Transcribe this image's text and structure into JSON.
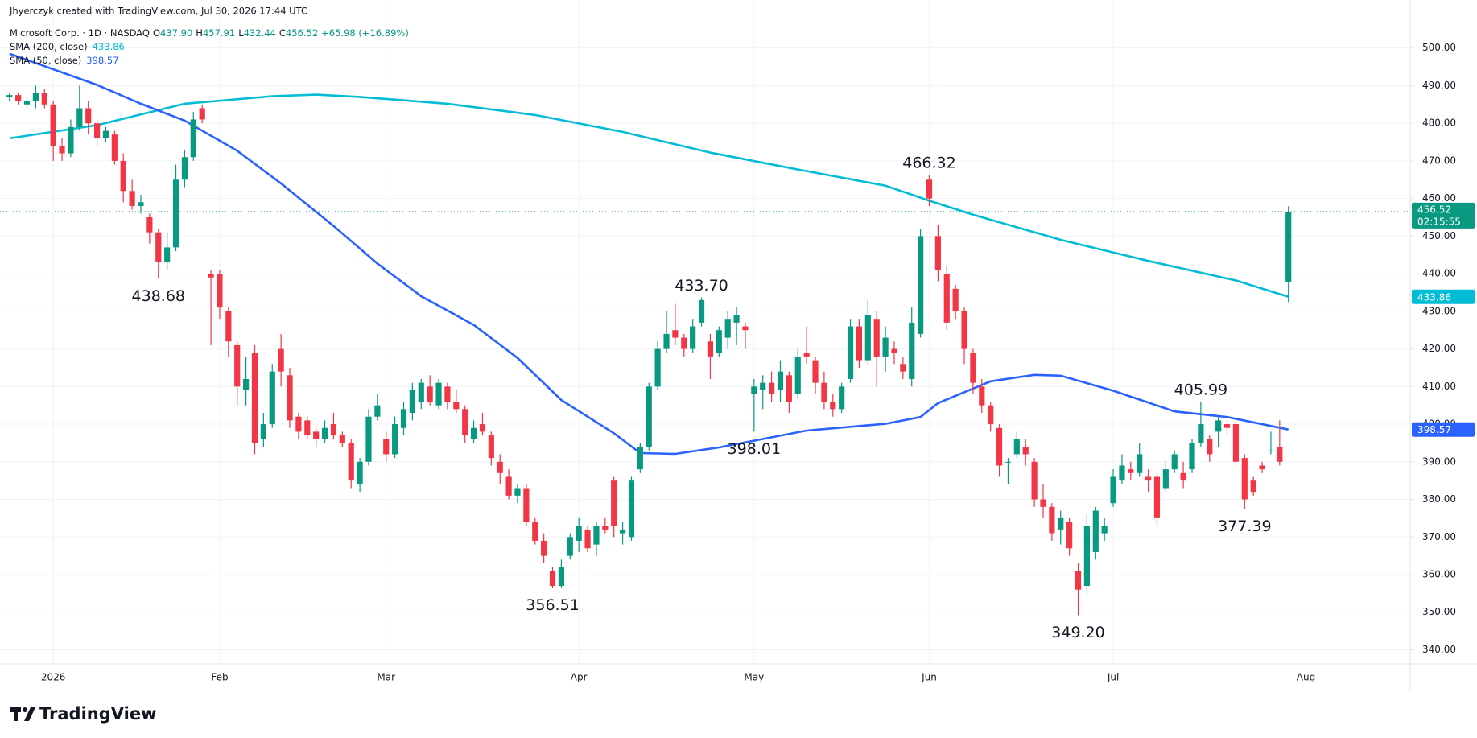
{
  "header": {
    "credit": "Jhyerczyk created with TradingView.com, Jul 30, 2026 17:44 UTC",
    "brand": "TradingView"
  },
  "chart_data": {
    "type": "candlestick",
    "legend": {
      "title": "Microsoft Corp. · 1D · NASDAQ",
      "fields": [
        [
          "O",
          "437.90"
        ],
        [
          "H",
          "457.91"
        ],
        [
          "L",
          "432.44"
        ],
        [
          "C",
          "456.52"
        ]
      ],
      "change": "+65.98 (+16.89%)"
    },
    "up_color": "#089981",
    "down_color": "#f23645",
    "grid": true,
    "xlim": [
      -1.08,
      159.9
    ],
    "ylim": [
      336.25,
      512.77
    ],
    "xticks": [
      {
        "value": 5,
        "label": "2026"
      },
      {
        "value": 24,
        "label": "Feb"
      },
      {
        "value": 43,
        "label": "Mar"
      },
      {
        "value": 65,
        "label": "Apr"
      },
      {
        "value": 85,
        "label": "May"
      },
      {
        "value": 105,
        "label": "Jun"
      },
      {
        "value": 126,
        "label": "Jul"
      },
      {
        "value": 148,
        "label": "Aug"
      }
    ],
    "yticks": [
      {
        "value": 340,
        "label": "340.00"
      },
      {
        "value": 350,
        "label": "350.00"
      },
      {
        "value": 360,
        "label": "360.00"
      },
      {
        "value": 370,
        "label": "370.00"
      },
      {
        "value": 380,
        "label": "380.00"
      },
      {
        "value": 390,
        "label": "390.00"
      },
      {
        "value": 400,
        "label": "400.00"
      },
      {
        "value": 410,
        "label": "410.00"
      },
      {
        "value": 420,
        "label": "420.00"
      },
      {
        "value": 430,
        "label": "430.00"
      },
      {
        "value": 440,
        "label": "440.00"
      },
      {
        "value": 450,
        "label": "450.00"
      },
      {
        "value": 460,
        "label": "460.00"
      },
      {
        "value": 470,
        "label": "470.00"
      },
      {
        "value": 480,
        "label": "480.00"
      },
      {
        "value": 490,
        "label": "490.00"
      },
      {
        "value": 500,
        "label": "500.00"
      }
    ],
    "ohlc": [
      [
        487,
        488,
        486,
        487.5
      ],
      [
        487.5,
        488,
        485,
        486
      ],
      [
        485,
        487,
        484,
        486
      ],
      [
        486,
        490,
        484,
        488
      ],
      [
        488,
        489,
        484,
        485
      ],
      [
        485,
        486,
        470,
        474
      ],
      [
        474,
        476,
        470,
        472
      ],
      [
        472,
        481,
        471,
        479
      ],
      [
        479,
        490,
        478,
        484
      ],
      [
        484,
        486,
        477,
        480
      ],
      [
        480,
        481,
        474,
        476
      ],
      [
        476,
        479,
        475,
        478
      ],
      [
        477,
        478,
        469,
        470
      ],
      [
        470,
        472,
        459,
        462
      ],
      [
        462,
        465,
        457,
        458
      ],
      [
        458,
        461,
        456,
        459
      ],
      [
        455,
        456,
        448,
        451
      ],
      [
        451,
        452,
        438.68,
        443
      ],
      [
        443,
        451,
        441,
        447
      ],
      [
        447,
        469,
        446,
        465
      ],
      [
        465,
        473,
        463,
        471
      ],
      [
        471,
        483,
        470,
        481
      ],
      [
        484,
        485,
        480,
        481
      ],
      [
        440,
        441,
        421,
        439
      ],
      [
        440,
        441,
        428,
        431
      ],
      [
        430,
        431,
        418,
        422
      ],
      [
        421,
        422,
        405,
        410
      ],
      [
        409,
        418,
        405,
        412
      ],
      [
        419,
        421,
        392,
        395
      ],
      [
        396,
        403,
        394,
        400
      ],
      [
        400,
        416,
        399,
        414
      ],
      [
        420,
        424,
        410,
        414
      ],
      [
        413,
        415,
        399,
        401
      ],
      [
        402,
        403,
        396,
        398
      ],
      [
        401,
        402,
        396,
        397
      ],
      [
        398,
        399,
        394,
        396
      ],
      [
        396,
        401,
        395,
        399
      ],
      [
        400,
        403,
        396,
        397
      ],
      [
        397,
        398,
        394,
        395
      ],
      [
        395,
        396,
        383,
        385
      ],
      [
        384,
        391,
        382,
        390
      ],
      [
        390,
        404,
        389,
        402
      ],
      [
        402,
        408,
        401,
        405
      ],
      [
        396,
        398,
        390,
        392
      ],
      [
        392,
        402,
        391,
        400
      ],
      [
        399,
        406,
        397,
        404
      ],
      [
        403,
        411,
        401,
        409
      ],
      [
        406,
        412,
        404,
        411
      ],
      [
        410,
        413,
        405,
        406
      ],
      [
        405,
        412,
        404,
        411
      ],
      [
        410,
        411,
        404,
        406
      ],
      [
        406,
        409,
        403,
        404
      ],
      [
        404,
        405,
        395,
        397
      ],
      [
        396,
        401,
        395,
        399
      ],
      [
        400,
        403,
        397,
        398
      ],
      [
        397,
        398,
        389,
        391
      ],
      [
        390,
        392,
        384,
        387
      ],
      [
        386,
        388,
        380,
        381
      ],
      [
        381,
        384,
        379,
        383
      ],
      [
        383,
        384,
        373,
        374
      ],
      [
        374,
        375,
        368,
        369
      ],
      [
        369,
        371,
        363,
        365
      ],
      [
        361,
        362,
        356.51,
        357
      ],
      [
        357,
        364,
        356.6,
        362
      ],
      [
        365,
        371,
        364,
        370
      ],
      [
        369,
        375,
        366,
        373
      ],
      [
        372,
        373,
        366,
        367
      ],
      [
        368,
        374,
        365,
        373
      ],
      [
        373,
        375,
        371,
        372
      ],
      [
        385,
        386,
        370,
        373
      ],
      [
        371,
        374,
        368,
        372
      ],
      [
        370,
        386,
        369,
        385
      ],
      [
        388,
        395,
        387,
        394
      ],
      [
        394,
        411,
        393,
        410
      ],
      [
        410,
        422,
        409,
        420
      ],
      [
        420,
        430,
        419,
        424
      ],
      [
        425,
        432,
        421,
        423
      ],
      [
        423,
        424,
        418,
        420
      ],
      [
        420,
        428,
        419,
        426
      ],
      [
        427,
        433.7,
        426,
        433
      ],
      [
        422,
        424,
        412,
        418
      ],
      [
        419,
        426,
        418,
        425
      ],
      [
        423,
        430,
        420,
        428
      ],
      [
        427,
        431,
        421,
        429
      ],
      [
        426,
        427,
        420,
        425
      ],
      [
        408,
        412,
        398.01,
        410
      ],
      [
        409,
        413,
        404,
        411
      ],
      [
        411,
        414,
        406,
        408
      ],
      [
        409,
        417,
        406,
        414
      ],
      [
        413,
        414,
        403,
        406
      ],
      [
        408,
        420,
        407,
        418
      ],
      [
        419,
        426,
        416,
        418
      ],
      [
        417,
        418,
        408,
        411
      ],
      [
        411,
        414,
        404,
        406
      ],
      [
        406,
        408,
        402,
        404
      ],
      [
        404,
        411,
        403,
        410
      ],
      [
        412,
        428,
        411,
        426
      ],
      [
        426,
        428,
        415,
        417
      ],
      [
        417,
        433,
        416,
        429
      ],
      [
        428,
        430,
        410,
        418
      ],
      [
        418,
        426,
        414,
        423
      ],
      [
        420,
        422,
        416,
        419
      ],
      [
        416,
        418,
        412,
        414
      ],
      [
        412,
        431,
        410,
        427
      ],
      [
        424,
        452,
        423,
        450
      ],
      [
        465,
        466.32,
        458,
        460
      ],
      [
        450,
        453,
        438,
        441
      ],
      [
        440,
        442,
        425,
        427
      ],
      [
        436,
        437,
        428,
        430
      ],
      [
        430,
        431,
        416,
        420
      ],
      [
        419,
        420,
        408,
        411
      ],
      [
        410,
        412,
        403,
        405
      ],
      [
        405,
        406,
        398,
        400
      ],
      [
        399,
        400,
        386,
        389
      ],
      [
        390,
        391,
        384,
        390
      ],
      [
        392,
        398,
        391,
        396
      ],
      [
        394,
        396,
        389,
        392
      ],
      [
        390,
        391,
        378,
        380
      ],
      [
        380,
        384,
        375,
        378
      ],
      [
        378,
        379,
        369,
        371
      ],
      [
        372,
        377,
        368,
        375
      ],
      [
        374,
        375,
        365,
        367
      ],
      [
        361,
        363,
        349.2,
        356
      ],
      [
        357,
        376,
        355,
        373
      ],
      [
        366,
        378,
        364,
        377
      ],
      [
        371,
        375,
        369,
        373
      ],
      [
        379,
        388,
        378,
        386
      ],
      [
        385,
        392,
        384,
        389
      ],
      [
        388,
        390,
        385,
        387
      ],
      [
        387,
        395,
        386,
        392
      ],
      [
        386,
        388,
        382,
        385
      ],
      [
        386,
        387,
        373,
        375
      ],
      [
        383,
        390,
        382,
        388
      ],
      [
        388,
        393,
        387,
        392
      ],
      [
        387,
        390,
        383,
        385
      ],
      [
        388,
        396,
        387,
        395
      ],
      [
        395,
        405.99,
        394,
        400
      ],
      [
        396,
        397,
        390,
        392
      ],
      [
        398,
        402,
        394,
        401
      ],
      [
        400,
        401,
        397,
        399
      ],
      [
        400,
        401,
        389,
        390
      ],
      [
        391,
        392,
        377.39,
        380
      ],
      [
        385,
        386,
        381,
        382
      ],
      [
        389,
        390,
        387,
        388
      ],
      [
        393,
        398,
        392,
        393
      ],
      [
        394,
        401,
        389,
        390
      ],
      [
        437.9,
        457.91,
        432.44,
        456.52
      ]
    ],
    "last_price_label": "456.52",
    "countdown": "02:15:55",
    "annotations": [
      {
        "x": 17,
        "value": 438.68,
        "label": "438.68"
      },
      {
        "x": 62,
        "value": 356.51,
        "label": "356.51"
      },
      {
        "x": 79,
        "value": 433.7,
        "label": "433.70"
      },
      {
        "x": 85,
        "value": 398.01,
        "label": "398.01"
      },
      {
        "x": 105,
        "value": 466.32,
        "label": "466.32"
      },
      {
        "x": 122,
        "value": 349.2,
        "label": "349.20"
      },
      {
        "x": 136,
        "value": 405.99,
        "label": "405.99"
      },
      {
        "x": 141,
        "value": 377.39,
        "label": "377.39"
      }
    ],
    "series": [
      {
        "name": "SMA (200, close)",
        "color": "#00bcd4",
        "last_label": "433.86",
        "x": [
          0,
          10,
          20,
          30,
          35,
          40,
          50,
          60,
          70,
          80,
          90,
          100,
          105,
          110,
          120,
          130,
          140,
          146
        ],
        "values": [
          476,
          479.5,
          485.2,
          487.2,
          487.6,
          487,
          485.2,
          482.2,
          477.7,
          472.2,
          467.7,
          463.4,
          459.4,
          455.7,
          449,
          443.4,
          438.2,
          433.86
        ]
      },
      {
        "name": "SMA (50, close)",
        "color": "#2962ff",
        "last_label": "398.57",
        "x": [
          0,
          10,
          15,
          20,
          26,
          31,
          37,
          42,
          47,
          53,
          58,
          63,
          69,
          72,
          76,
          81,
          85,
          91,
          100,
          104,
          106,
          112,
          117,
          120,
          126,
          133,
          139,
          146
        ],
        "values": [
          498.5,
          490.2,
          485.2,
          480.7,
          472.7,
          464,
          452.7,
          442.7,
          434,
          426.4,
          417.6,
          406.4,
          397.6,
          392.3,
          392.1,
          393.8,
          395.6,
          398.3,
          400.1,
          401.9,
          405.6,
          411.4,
          413.1,
          412.9,
          408.9,
          403.4,
          401.9,
          398.57
        ]
      }
    ]
  }
}
